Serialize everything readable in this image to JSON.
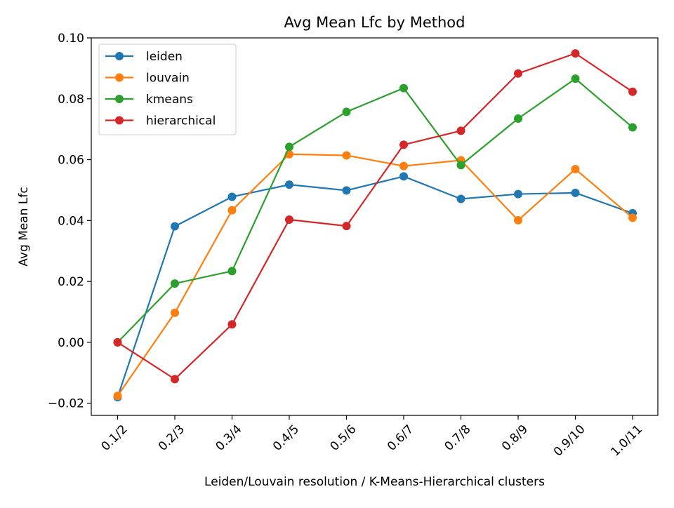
{
  "chart_data": {
    "type": "line",
    "title": "Avg Mean Lfc by Method",
    "xlabel": "Leiden/Louvain resolution  /  K-Means-Hierarchical clusters",
    "ylabel": "Avg Mean Lfc",
    "categories": [
      "0.1/2",
      "0.2/3",
      "0.3/4",
      "0.4/5",
      "0.5/6",
      "0.6/7",
      "0.7/8",
      "0.8/9",
      "0.9/10",
      "1.0/11"
    ],
    "ylim": [
      -0.024,
      0.1
    ],
    "yticks": [
      -0.02,
      0.0,
      0.02,
      0.04,
      0.06,
      0.08,
      0.1
    ],
    "ytick_labels": [
      "−0.02",
      "0.00",
      "0.02",
      "0.04",
      "0.06",
      "0.08",
      "0.10"
    ],
    "grid": false,
    "legend_position": "upper-left",
    "series": [
      {
        "name": "leiden",
        "color": "#1f77b4",
        "values": [
          -0.018,
          0.0381,
          0.0478,
          0.0518,
          0.0499,
          0.0545,
          0.0471,
          0.0487,
          0.0491,
          0.0424
        ]
      },
      {
        "name": "louvain",
        "color": "#ff7f0e",
        "values": [
          -0.0176,
          0.0097,
          0.0434,
          0.0618,
          0.0614,
          0.0579,
          0.0598,
          0.0401,
          0.0569,
          0.0409
        ]
      },
      {
        "name": "kmeans",
        "color": "#2ca02c",
        "values": [
          0.0,
          0.0193,
          0.0234,
          0.0642,
          0.0757,
          0.0835,
          0.0582,
          0.0735,
          0.0866,
          0.0706
        ]
      },
      {
        "name": "hierarchical",
        "color": "#d62728",
        "values": [
          0.0,
          -0.0121,
          0.0059,
          0.0403,
          0.0382,
          0.0649,
          0.0695,
          0.0883,
          0.0949,
          0.0823
        ]
      }
    ]
  }
}
